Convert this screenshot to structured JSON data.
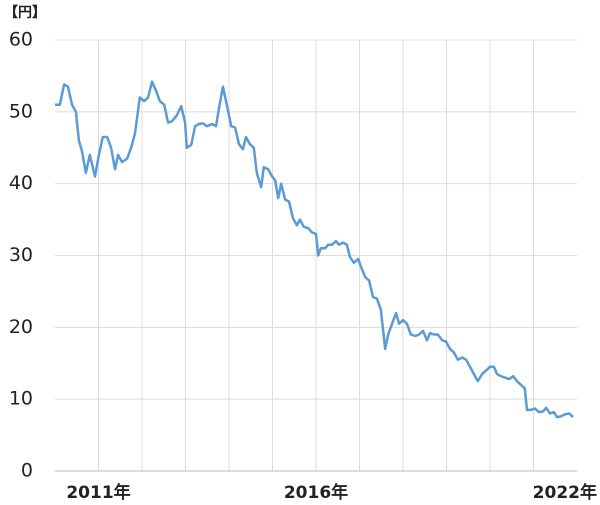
{
  "chart_data": {
    "type": "line",
    "y_label": "【円】",
    "xlim": [
      2010,
      2022
    ],
    "xticks": [
      {
        "value": 2011,
        "label": "2011年"
      },
      {
        "value": 2016,
        "label": "2016年"
      },
      {
        "value": 2022,
        "label": "2022年"
      }
    ],
    "xgrid": [
      2011,
      2012,
      2013,
      2014,
      2015,
      2016,
      2017,
      2018,
      2019,
      2020,
      2021
    ],
    "ylim": [
      0,
      60
    ],
    "yticks": [
      0,
      10,
      20,
      30,
      40,
      50,
      60
    ],
    "grid": true,
    "series": [
      {
        "color": "#5b9bd5",
        "x": [
          2010.0,
          2010.11,
          2010.21,
          2010.3,
          2010.39,
          2010.48,
          2010.55,
          2010.62,
          2010.71,
          2010.8,
          2010.92,
          2011.01,
          2011.1,
          2011.2,
          2011.29,
          2011.38,
          2011.45,
          2011.54,
          2011.66,
          2011.75,
          2011.84,
          2011.95,
          2012.05,
          2012.14,
          2012.23,
          2012.32,
          2012.41,
          2012.51,
          2012.6,
          2012.69,
          2012.8,
          2012.9,
          2012.99,
          2013.03,
          2013.13,
          2013.22,
          2013.31,
          2013.4,
          2013.49,
          2013.61,
          2013.7,
          2013.77,
          2013.86,
          2013.95,
          2014.05,
          2014.14,
          2014.23,
          2014.32,
          2014.39,
          2014.48,
          2014.57,
          2014.64,
          2014.74,
          2014.8,
          2014.9,
          2014.99,
          2015.06,
          2015.13,
          2015.2,
          2015.29,
          2015.38,
          2015.47,
          2015.56,
          2015.63,
          2015.72,
          2015.82,
          2015.91,
          2016.0,
          2016.05,
          2016.11,
          2016.21,
          2016.28,
          2016.37,
          2016.46,
          2016.53,
          2016.62,
          2016.71,
          2016.78,
          2016.87,
          2016.97,
          2017.03,
          2017.13,
          2017.22,
          2017.31,
          2017.4,
          2017.49,
          2017.59,
          2017.66,
          2017.75,
          2017.84,
          2017.91,
          2018.0,
          2018.09,
          2018.18,
          2018.28,
          2018.37,
          2018.46,
          2018.55,
          2018.62,
          2018.71,
          2018.8,
          2018.9,
          2018.99,
          2019.08,
          2019.17,
          2019.26,
          2019.36,
          2019.45,
          2019.54,
          2019.63,
          2019.72,
          2019.82,
          2019.91,
          2020.0,
          2020.09,
          2020.16,
          2020.25,
          2020.34,
          2020.44,
          2020.53,
          2020.62,
          2020.71,
          2020.8,
          2020.85,
          2020.94,
          2021.03,
          2021.13,
          2021.22,
          2021.29,
          2021.38,
          2021.47,
          2021.54,
          2021.63,
          2021.72,
          2021.82,
          2021.91
        ],
        "values": [
          51,
          51,
          53.8,
          53.5,
          51,
          50,
          46,
          44.5,
          41.5,
          44,
          41,
          44,
          46.5,
          46.5,
          45,
          42,
          44,
          43,
          43.5,
          45,
          47,
          52,
          51.5,
          52,
          54.2,
          53,
          51.5,
          51,
          48.5,
          48.7,
          49.5,
          50.8,
          48.5,
          45,
          45.4,
          48,
          48.3,
          48.4,
          48,
          48.3,
          48,
          50.5,
          53.5,
          51,
          48,
          47.8,
          45.5,
          44.8,
          46.5,
          45.5,
          45,
          41.5,
          39.5,
          42.3,
          42,
          41,
          40.5,
          38,
          40,
          37.8,
          37.5,
          35.2,
          34.2,
          35,
          34,
          33.8,
          33.2,
          33,
          30,
          31,
          31,
          31.5,
          31.5,
          32,
          31.5,
          31.8,
          31.5,
          29.8,
          29,
          29.5,
          28.5,
          27,
          26.5,
          24.2,
          24,
          22.5,
          17,
          19,
          20.5,
          22,
          20.5,
          21,
          20.5,
          19,
          18.8,
          19,
          19.5,
          18.2,
          19.2,
          19,
          19,
          18.2,
          18,
          17,
          16.5,
          15.5,
          15.8,
          15.5,
          14.5,
          13.5,
          12.5,
          13.5,
          14,
          14.5,
          14.5,
          13.5,
          13.2,
          13,
          12.8,
          13.2,
          12.5,
          12,
          11.5,
          8.5,
          8.5,
          8.7,
          8.2,
          8.3,
          8.8,
          8,
          8.2,
          7.5,
          7.6,
          7.9,
          8,
          7.5
        ]
      }
    ]
  }
}
